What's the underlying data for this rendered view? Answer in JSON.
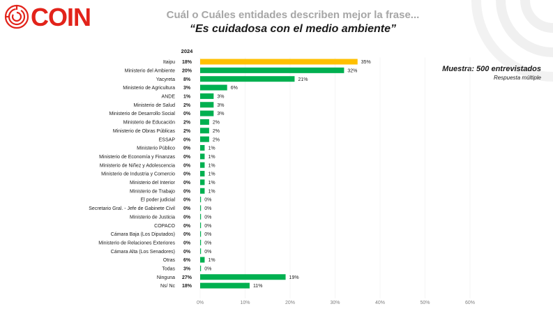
{
  "header": {
    "brand": "COIN",
    "title": "Cuál o Cuáles entidades describen mejor la frase...",
    "subtitle": "“Es cuidadosa con el medio ambiente”"
  },
  "note": {
    "sample": "Muestra: 500 entrevistados",
    "multiple": "Respuesta múltiple"
  },
  "colors": {
    "highlight": "#ffc000",
    "bar": "#00b050",
    "title_gray": "#a6a6a6",
    "brand_red": "#e2231a"
  },
  "chart_data": {
    "type": "bar",
    "orientation": "horizontal",
    "year_header": "2024",
    "categories": [
      "Itaipu",
      "Ministerio del Ambiente",
      "Yacyreta",
      "Ministerio de Agricultura",
      "ANDE",
      "Ministerio de Salud",
      "Ministerio de Desarrollo Social",
      "Ministerio de Educación",
      "Ministerio de Obras Públicas",
      "ESSAP",
      "Ministerio Público",
      "Ministerio de Economía y Finanzas",
      "Ministerio de Niñez y Adolescencia",
      "Ministerio de Industria y Comercio",
      "Ministerio del Interior",
      "Ministerio de Trabajo",
      "El poder judicial",
      "Secretario Gral. - Jefe de Gabinete Civil",
      "Ministerio de Justicia",
      "COPACO",
      "Cámara Baja (Los Diputados)",
      "Ministerio de Relaciones Exteriores",
      "Cámara Alta (Los Senadores)",
      "Otras",
      "Todas",
      "Ninguna",
      "Ns/ Nc"
    ],
    "values": [
      35,
      32,
      21,
      6,
      3,
      3,
      3,
      2,
      2,
      2,
      1,
      1,
      1,
      1,
      1,
      1,
      0,
      0,
      0,
      0,
      0,
      0,
      0,
      1,
      0,
      19,
      11
    ],
    "year_values": [
      "18%",
      "20%",
      "8%",
      "3%",
      "1%",
      "2%",
      "0%",
      "2%",
      "2%",
      "0%",
      "0%",
      "0%",
      "0%",
      "0%",
      "0%",
      "0%",
      "0%",
      "0%",
      "0%",
      "0%",
      "0%",
      "0%",
      "0%",
      "6%",
      "3%",
      "27%",
      "18%"
    ],
    "value_labels": [
      "35%",
      "32%",
      "21%",
      "6%",
      "3%",
      "3%",
      "3%",
      "2%",
      "2%",
      "2%",
      "1%",
      "1%",
      "1%",
      "1%",
      "1%",
      "1%",
      "0%",
      "0%",
      "0%",
      "0%",
      "0%",
      "0%",
      "0%",
      "1%",
      "0%",
      "19%",
      "11%"
    ],
    "highlight_index": 0,
    "xlim": [
      0,
      60
    ],
    "xticks": [
      "0%",
      "10%",
      "20%",
      "30%",
      "40%",
      "50%",
      "60%"
    ],
    "unit": "%"
  }
}
